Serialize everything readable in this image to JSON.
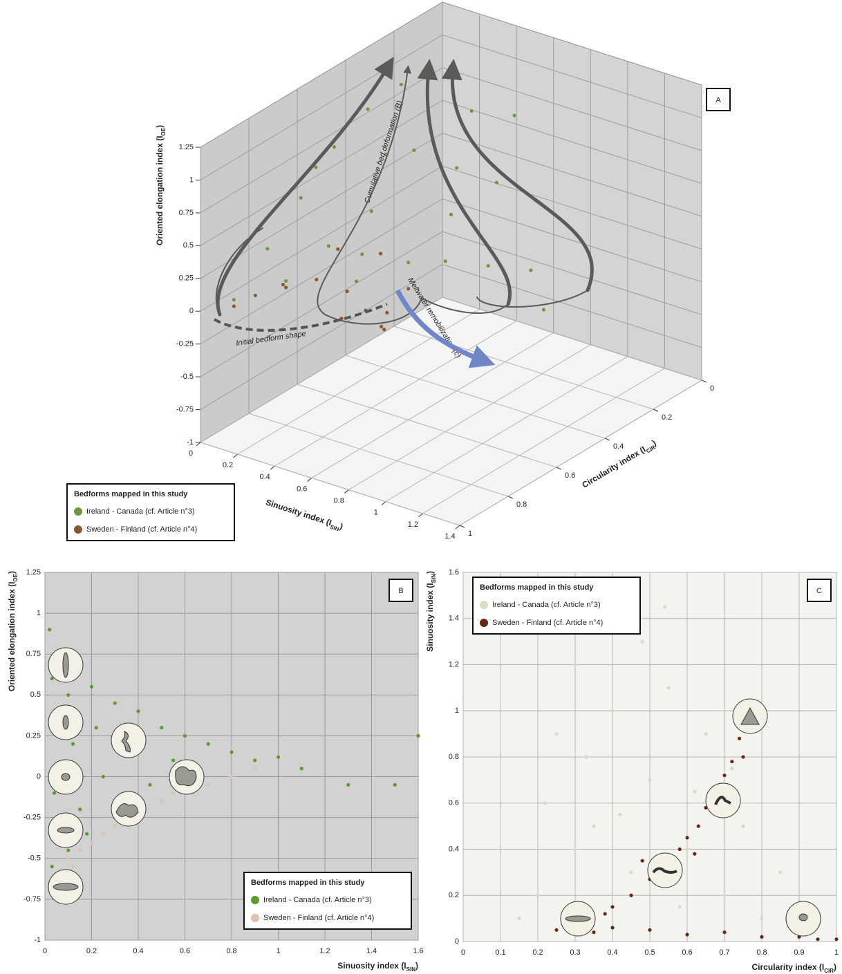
{
  "chart_data": [
    {
      "type": "scatter3d",
      "panel_label": "A",
      "xlabel": {
        "text": "Sinuosity index (I",
        "sub": "SIN",
        "end": ")"
      },
      "ylabel": {
        "text": "Circularity index (I",
        "sub": "CIR",
        "end": ")"
      },
      "zlabel": {
        "text": "Oriented elongation index (I",
        "sub": "OE",
        "end": ")"
      },
      "xlim": [
        0,
        1.4
      ],
      "xticks": [
        0,
        0.2,
        0.4,
        0.6,
        0.8,
        1,
        1.2,
        1.4
      ],
      "ylim": [
        0,
        1
      ],
      "yticks": [
        0,
        0.2,
        0.4,
        0.6,
        0.8,
        1
      ],
      "zlim": [
        -1,
        1.25
      ],
      "zticks": [
        -1,
        -0.75,
        -0.5,
        -0.25,
        0,
        0.25,
        0.5,
        0.75,
        1,
        1.25
      ],
      "grid": true,
      "annotations": [
        "Cumulative bed deformation (B)",
        "Meltwater remobilization (c)",
        "Initial bedform shape"
      ],
      "legend_title": "Bedforms mapped in this study",
      "legend": "lower left",
      "series": [
        {
          "name": "Ireland - Canada (cf. Article n°3)",
          "color": "#6f9a3c",
          "x": [
            0.05,
            0.1,
            0.15,
            0.2,
            0.25,
            0.3,
            0.35,
            0.4,
            0.3,
            0.5,
            0.6,
            0.7,
            0.8,
            0.9,
            1.0,
            0.6,
            0.45,
            0.2,
            0.55,
            0.75,
            1.2,
            0.35,
            0.1,
            0.65
          ],
          "y": [
            0.9,
            0.8,
            0.7,
            0.6,
            0.5,
            0.4,
            0.5,
            0.6,
            0.7,
            0.5,
            0.4,
            0.5,
            0.6,
            0.5,
            0.4,
            0.6,
            0.7,
            0.8,
            0.3,
            0.35,
            0.5,
            0.6,
            0.6,
            0.2
          ],
          "z": [
            0.0,
            0.3,
            0.6,
            0.9,
            1.1,
            1.2,
            0.8,
            0.5,
            0.3,
            0.9,
            0.7,
            0.5,
            0.3,
            0.2,
            0.1,
            0.2,
            0.1,
            0.1,
            1.0,
            0.6,
            0.0,
            0.15,
            0.7,
            0.9
          ]
        },
        {
          "name": "Sweden - Finland (cf. Article n°4)",
          "color": "#8b5634",
          "x": [
            0.05,
            0.1,
            0.2,
            0.3,
            0.4,
            0.5,
            0.55,
            0.6,
            0.45,
            0.35,
            0.65,
            0.5,
            0.25,
            0.6
          ],
          "y": [
            0.9,
            0.85,
            0.8,
            0.75,
            0.7,
            0.7,
            0.65,
            0.7,
            0.6,
            0.7,
            0.75,
            0.8,
            0.85,
            0.6
          ],
          "z": [
            -0.05,
            0.0,
            0.05,
            0.1,
            0.0,
            -0.1,
            -0.15,
            -0.2,
            0.2,
            0.3,
            -0.1,
            -0.05,
            0.15,
            0.0
          ]
        }
      ]
    },
    {
      "type": "scatter",
      "panel_label": "B",
      "xlabel": {
        "text": "Sinuosity index (I",
        "sub": "SIN",
        "end": ")"
      },
      "ylabel": {
        "text": "Oriented elongation index (I",
        "sub": "OE",
        "end": ")"
      },
      "xlim": [
        0,
        1.6
      ],
      "xticks": [
        0,
        0.2,
        0.4,
        0.6,
        0.8,
        1,
        1.2,
        1.4,
        1.6
      ],
      "ylim": [
        -1,
        1.25
      ],
      "yticks": [
        -1,
        -0.75,
        -0.5,
        -0.25,
        0,
        0.25,
        0.5,
        0.75,
        1,
        1.25
      ],
      "grid": true,
      "background": "#d2d2d2",
      "grid_color": "#9a9a9a",
      "legend_title": "Bedforms mapped in this study",
      "legend": "lower right",
      "series": [
        {
          "name": "Ireland - Canada (cf. Article n°3)",
          "color": "#5f9a2c",
          "x": [
            0.02,
            0.03,
            0.05,
            0.04,
            0.06,
            0.03,
            0.1,
            0.12,
            0.15,
            0.1,
            0.2,
            0.22,
            0.25,
            0.3,
            0.3,
            0.35,
            0.4,
            0.45,
            0.5,
            0.55,
            0.6,
            0.65,
            0.7,
            0.8,
            0.9,
            1.0,
            1.1,
            1.3,
            1.5,
            1.6,
            0.08,
            0.18
          ],
          "y": [
            0.9,
            0.6,
            0.3,
            -0.1,
            -0.4,
            -0.55,
            0.5,
            0.2,
            -0.2,
            -0.45,
            0.55,
            0.3,
            0.0,
            -0.25,
            0.45,
            0.15,
            0.4,
            -0.05,
            0.3,
            0.1,
            0.25,
            0.05,
            0.2,
            0.15,
            0.1,
            0.12,
            0.05,
            -0.05,
            -0.05,
            0.25,
            0.75,
            -0.35
          ]
        },
        {
          "name": "Sweden - Finland (cf. Article n°4)",
          "color": "#dcc2b2",
          "x": [
            0.05,
            0.1,
            0.15,
            0.2,
            0.25,
            0.3,
            0.4,
            0.5,
            0.6,
            0.7,
            0.8,
            0.9,
            0.08,
            0.35,
            0.55,
            0.12
          ],
          "y": [
            -0.6,
            -0.5,
            -0.45,
            -0.4,
            -0.35,
            -0.3,
            -0.22,
            -0.15,
            -0.08,
            -0.05,
            0.0,
            0.05,
            -0.65,
            -0.28,
            -0.1,
            -0.55
          ]
        }
      ]
    },
    {
      "type": "scatter",
      "panel_label": "C",
      "xlabel": {
        "text": "Circularity index (I",
        "sub": "CIR",
        "end": ")"
      },
      "ylabel": {
        "text": "Sinuosity index (I",
        "sub": "SIN",
        "end": ")"
      },
      "xlim": [
        0,
        1
      ],
      "xticks": [
        0,
        0.1,
        0.2,
        0.3,
        0.4,
        0.5,
        0.6,
        0.7,
        0.8,
        0.9,
        1
      ],
      "ylim": [
        0,
        1.6
      ],
      "yticks": [
        0,
        0.2,
        0.4,
        0.6,
        0.8,
        1,
        1.2,
        1.4,
        1.6
      ],
      "grid": true,
      "background": "#f3f3f0",
      "grid_color": "#b4b4b4",
      "legend_title": "Bedforms mapped in this study",
      "legend": "upper left",
      "series": [
        {
          "name": "Ireland - Canada (cf. Article n°3)",
          "color": "#d9dbc2",
          "x": [
            0.25,
            0.3,
            0.35,
            0.4,
            0.45,
            0.5,
            0.55,
            0.6,
            0.65,
            0.7,
            0.75,
            0.8,
            0.85,
            0.2,
            0.3,
            0.22,
            0.33,
            0.42,
            0.48,
            0.58,
            0.62,
            0.72,
            0.9,
            0.15,
            0.54
          ],
          "y": [
            0.9,
            1.2,
            0.5,
            1.0,
            0.3,
            0.7,
            1.1,
            0.4,
            0.9,
            0.2,
            0.5,
            0.1,
            0.3,
            0.2,
            0.4,
            0.6,
            0.8,
            0.55,
            1.3,
            0.15,
            0.65,
            0.75,
            0.05,
            0.1,
            1.45
          ]
        },
        {
          "name": "Sweden - Finland (cf. Article n°4)",
          "color": "#6a2812",
          "x": [
            0.4,
            0.45,
            0.5,
            0.52,
            0.55,
            0.58,
            0.6,
            0.63,
            0.65,
            0.67,
            0.7,
            0.72,
            0.74,
            0.77,
            0.8,
            0.75,
            0.48,
            0.25,
            0.3,
            0.35,
            0.4,
            0.5,
            0.6,
            0.7,
            0.8,
            0.9,
            0.95,
            1.0,
            0.38,
            0.62
          ],
          "y": [
            0.15,
            0.2,
            0.27,
            0.35,
            0.3,
            0.4,
            0.45,
            0.5,
            0.58,
            0.62,
            0.72,
            0.78,
            0.88,
            0.95,
            1.02,
            0.8,
            0.35,
            0.05,
            0.08,
            0.04,
            0.06,
            0.05,
            0.03,
            0.04,
            0.02,
            0.02,
            0.01,
            0.01,
            0.12,
            0.38
          ]
        }
      ]
    }
  ]
}
